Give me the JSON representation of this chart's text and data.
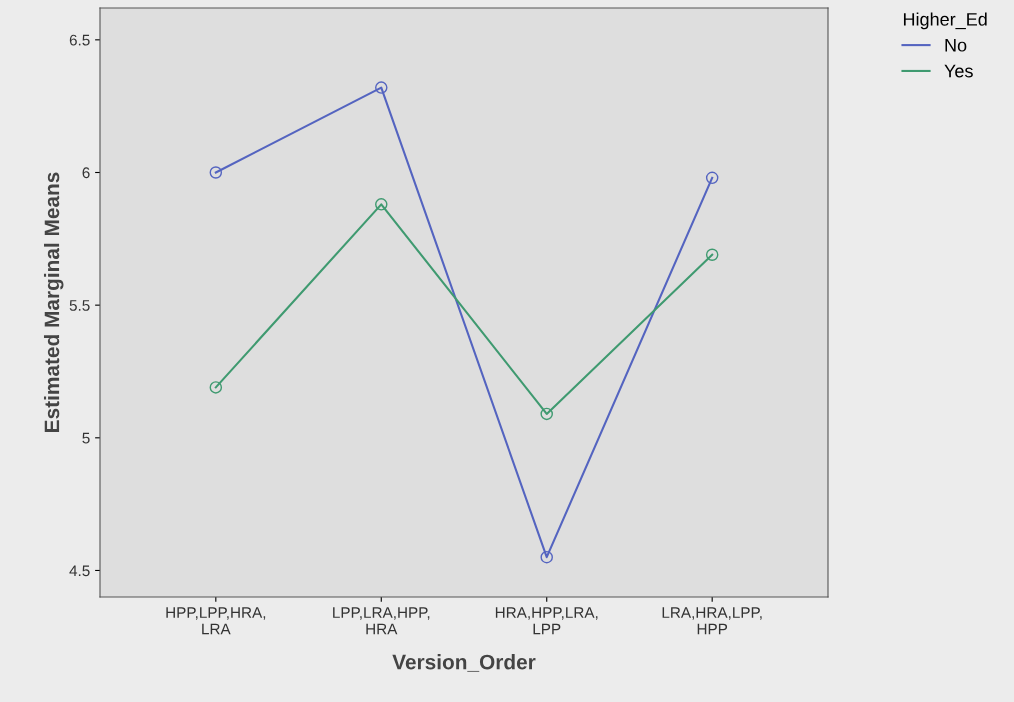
{
  "chart_data": {
    "type": "line",
    "xlabel": "Version_Order",
    "ylabel": "Estimated Marginal Means",
    "legend_title": "Higher_Ed",
    "categories": [
      "HPP,LPP,HRA,\nLRA",
      "LPP,LRA,HPP,\nHRA",
      "HRA,HPP,LRA,\nLPP",
      "LRA,HRA,LPP,\nHPP"
    ],
    "series": [
      {
        "name": "No",
        "color": "#5464c0",
        "values": [
          6.0,
          6.32,
          4.55,
          5.98
        ]
      },
      {
        "name": "Yes",
        "color": "#3f9a70",
        "values": [
          5.19,
          5.88,
          5.09,
          5.69
        ]
      }
    ],
    "ylim": [
      4.4,
      6.62
    ],
    "yticks": [
      4.5,
      5,
      5.5,
      6,
      6.5
    ],
    "marker": "circle",
    "line_style": "solid",
    "legend": "top right",
    "grid": false
  }
}
